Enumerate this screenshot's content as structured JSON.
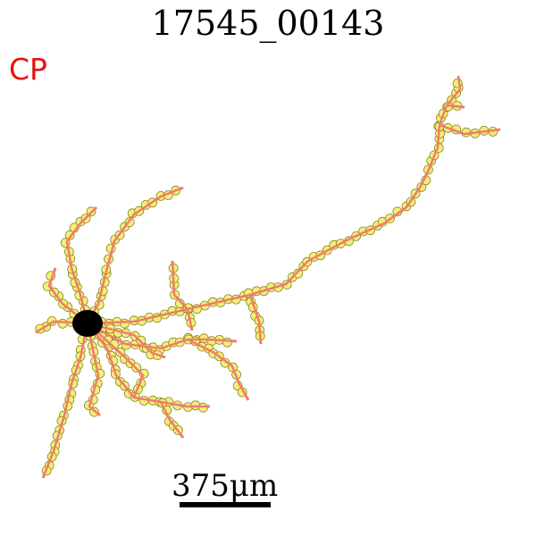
{
  "title": "17545_00143",
  "region_label": "CP",
  "scale_bar_label": "375μm",
  "colors": {
    "region_label": "#e8120c",
    "neurite": "#f27b6e",
    "node_fill": "#f5ee7a",
    "node_stroke": "#8a8a1e",
    "soma": "#000000"
  }
}
